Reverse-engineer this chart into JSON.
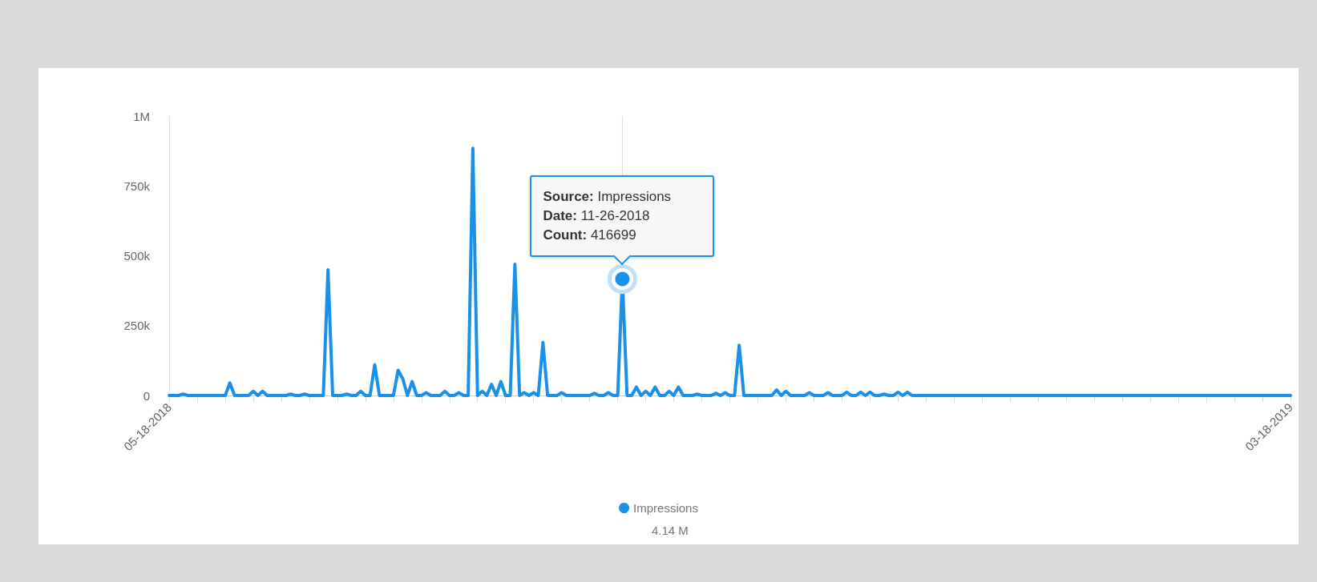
{
  "chart_data": {
    "type": "line",
    "categories": [
      "05-18-2018",
      null,
      null,
      null,
      null,
      null,
      null,
      null,
      null,
      null,
      null,
      null,
      null,
      null,
      null,
      null,
      null,
      null,
      null,
      null,
      null,
      null,
      null,
      null,
      null,
      null,
      null,
      null,
      null,
      null,
      null,
      null,
      null,
      null,
      null,
      null,
      null,
      null,
      null,
      null,
      null,
      null,
      null,
      null,
      null,
      null,
      null,
      null,
      null,
      null,
      null,
      null,
      null,
      null,
      null,
      null,
      null,
      null,
      null,
      null,
      null,
      null,
      null,
      null,
      null,
      null,
      null,
      null,
      null,
      null,
      null,
      null,
      null,
      null,
      null,
      null,
      null,
      null,
      null,
      null,
      null,
      null,
      null,
      null,
      null,
      null,
      null,
      null,
      null,
      null,
      null,
      null,
      null,
      null,
      null,
      null,
      null,
      null,
      null,
      null,
      null,
      null,
      null,
      null,
      null,
      null,
      null,
      null,
      null,
      null,
      null,
      null,
      null,
      null,
      null,
      null,
      null,
      null,
      null,
      null,
      null,
      null,
      null,
      null,
      null,
      null,
      null,
      null,
      null,
      null,
      null,
      null,
      null,
      null,
      null,
      null,
      null,
      null,
      null,
      null,
      null,
      null,
      null,
      null,
      null,
      null,
      null,
      null,
      null,
      null,
      null,
      null,
      null,
      null,
      null,
      null,
      null,
      null,
      null,
      null,
      null,
      null,
      null,
      null,
      null,
      null,
      null,
      null,
      null,
      null,
      null,
      null,
      null,
      null,
      null,
      null,
      null,
      null,
      null,
      null,
      null,
      null,
      null,
      null,
      null,
      null,
      null,
      null,
      null,
      null,
      null,
      null,
      null,
      null,
      null,
      null,
      null,
      null,
      null,
      null,
      null,
      null,
      null,
      null,
      null,
      null,
      null,
      null,
      null,
      null,
      null,
      null,
      null,
      null,
      null,
      null,
      null,
      null,
      null,
      null,
      null,
      null,
      null,
      null,
      null,
      null,
      null,
      null,
      null,
      null,
      null,
      null,
      null,
      null,
      null,
      null,
      null,
      null,
      null,
      null,
      "03-18-2019"
    ],
    "series": [
      {
        "name": "Impressions",
        "color": "#1a91e8",
        "values": [
          0,
          0,
          0,
          5000,
          0,
          0,
          0,
          0,
          0,
          0,
          0,
          0,
          0,
          45000,
          0,
          0,
          0,
          0,
          15000,
          0,
          15000,
          0,
          0,
          0,
          0,
          0,
          5000,
          0,
          0,
          5000,
          0,
          0,
          0,
          0,
          450000,
          0,
          0,
          0,
          5000,
          0,
          0,
          15000,
          0,
          0,
          110000,
          0,
          0,
          0,
          0,
          90000,
          60000,
          0,
          50000,
          0,
          0,
          10000,
          0,
          0,
          0,
          15000,
          0,
          0,
          10000,
          0,
          0,
          885000,
          0,
          15000,
          0,
          40000,
          0,
          50000,
          0,
          0,
          470000,
          0,
          10000,
          0,
          10000,
          0,
          190000,
          0,
          0,
          0,
          10000,
          0,
          0,
          0,
          0,
          0,
          0,
          8000,
          0,
          0,
          10000,
          0,
          0,
          416699,
          0,
          0,
          30000,
          0,
          15000,
          0,
          30000,
          0,
          0,
          15000,
          0,
          30000,
          0,
          0,
          0,
          5000,
          0,
          0,
          0,
          8000,
          0,
          10000,
          0,
          0,
          180000,
          0,
          0,
          0,
          0,
          0,
          0,
          0,
          20000,
          0,
          15000,
          0,
          0,
          0,
          0,
          10000,
          0,
          0,
          0,
          10000,
          0,
          0,
          0,
          12000,
          0,
          0,
          12000,
          0,
          12000,
          0,
          0,
          5000,
          0,
          0,
          12000,
          0,
          12000,
          0,
          0,
          0,
          0,
          0,
          0,
          0,
          0,
          0,
          0,
          0,
          0,
          0,
          0,
          0,
          0,
          0,
          0,
          0,
          0,
          0,
          0,
          0,
          0,
          0,
          0,
          0,
          0,
          0,
          0,
          0,
          0,
          0,
          0,
          0,
          0,
          0,
          0,
          0,
          0,
          0,
          0,
          0,
          0,
          0,
          0,
          0,
          0,
          0,
          0,
          0,
          0,
          0,
          0,
          0,
          0,
          0,
          0,
          0,
          0,
          0,
          0,
          0,
          0,
          0,
          0,
          0,
          0,
          0,
          0,
          0,
          0,
          0,
          0,
          0,
          0,
          0,
          0,
          0,
          0,
          0,
          0
        ]
      }
    ],
    "ylim": [
      0,
      1000000
    ],
    "yticks": [
      0,
      {
        "value": 250000,
        "label": "250k"
      },
      {
        "value": 500000,
        "label": "500k"
      },
      {
        "value": 750000,
        "label": "750k"
      },
      {
        "value": 1000000,
        "label": "1M"
      }
    ],
    "grid": false,
    "legend": "bottom",
    "marker": "none",
    "line_style": "solid",
    "annotations": [
      "Source: Impressions",
      "Date: 11-26-2018",
      "Count: 416699",
      "4.14 M"
    ]
  }
}
